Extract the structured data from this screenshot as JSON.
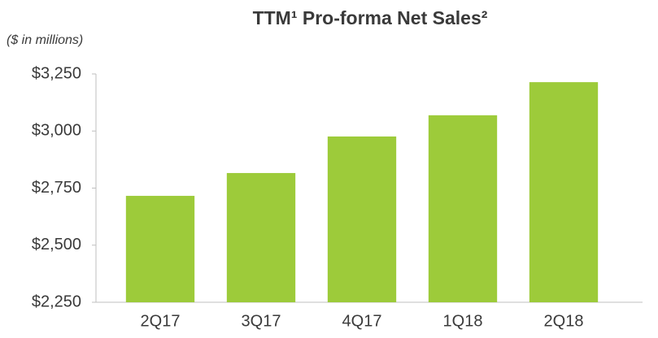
{
  "chart_data": {
    "type": "bar",
    "title": "TTM¹ Pro-forma Net Sales²",
    "subtitle": "($ in millions)",
    "categories": [
      "2Q17",
      "3Q17",
      "4Q17",
      "1Q18",
      "2Q18"
    ],
    "values": [
      2716,
      2816,
      2976,
      3069,
      3214
    ],
    "color": "#9dcb3a",
    "ylim": [
      2250,
      3250
    ],
    "yticks": [
      {
        "value": 2250,
        "label": "$2,250"
      },
      {
        "value": 2500,
        "label": "$2,500"
      },
      {
        "value": 2750,
        "label": "$2,750"
      },
      {
        "value": 3000,
        "label": "$3,000"
      },
      {
        "value": 3250,
        "label": "$3,250"
      }
    ],
    "grid": false
  }
}
